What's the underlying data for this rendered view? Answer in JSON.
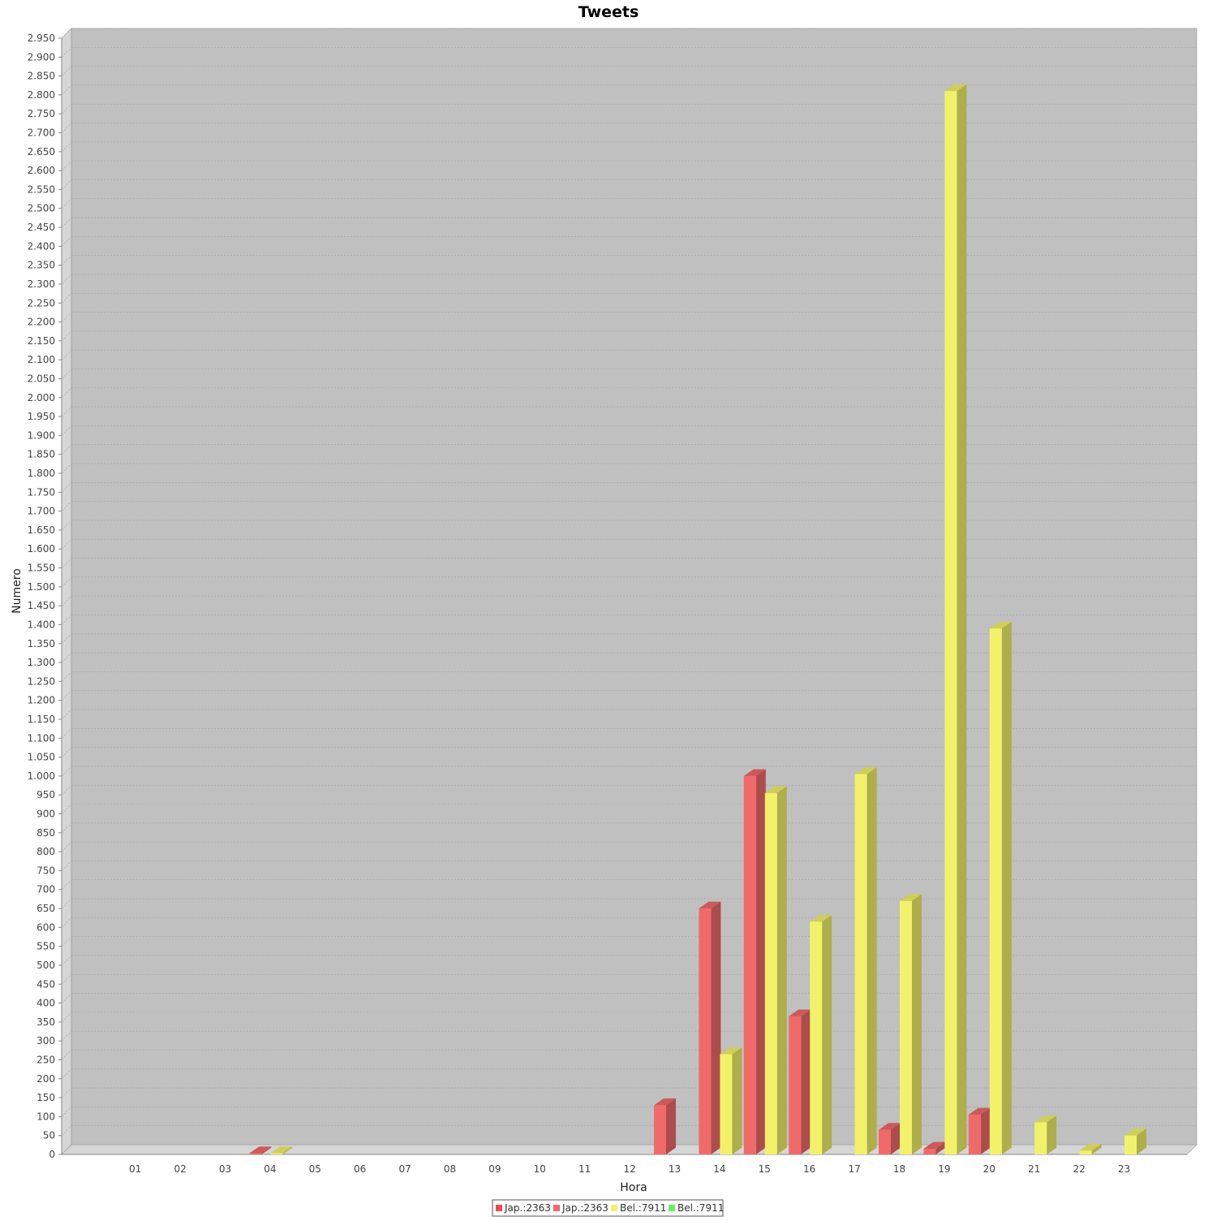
{
  "chart_data": {
    "type": "bar",
    "title": "Tweets",
    "xlabel": "Hora",
    "ylabel": "Numero",
    "categories": [
      "01",
      "02",
      "03",
      "04",
      "05",
      "06",
      "07",
      "08",
      "09",
      "10",
      "11",
      "12",
      "13",
      "14",
      "15",
      "16",
      "17",
      "18",
      "19",
      "20",
      "21",
      "22",
      "23"
    ],
    "series": [
      {
        "name": "Jap.:2363",
        "color": "#f06a6a",
        "values": [
          0,
          0,
          0,
          3,
          0,
          0,
          0,
          0,
          0,
          0,
          0,
          0,
          130,
          650,
          1000,
          365,
          0,
          65,
          15,
          105,
          0,
          0,
          0
        ]
      },
      {
        "name": "Bel.:7911",
        "color": "#f2f26a",
        "values": [
          0,
          0,
          0,
          3,
          0,
          0,
          0,
          0,
          0,
          0,
          0,
          0,
          0,
          265,
          955,
          615,
          1005,
          670,
          2810,
          1390,
          85,
          10,
          50
        ]
      }
    ],
    "legend": {
      "position": "bottom",
      "entries": [
        {
          "label": "Jap.:2363",
          "color": "#f04a4a"
        },
        {
          "label": "Jap.:2363",
          "color": "#f06a6a"
        },
        {
          "label": "Bel.:7911",
          "color": "#f2f26a"
        },
        {
          "label": "Bel.:7911",
          "color": "#66ee66"
        }
      ]
    },
    "ylim": [
      0,
      2950
    ],
    "ytick_step": 50,
    "grid": true,
    "plot_background": "#c0c0c0"
  }
}
